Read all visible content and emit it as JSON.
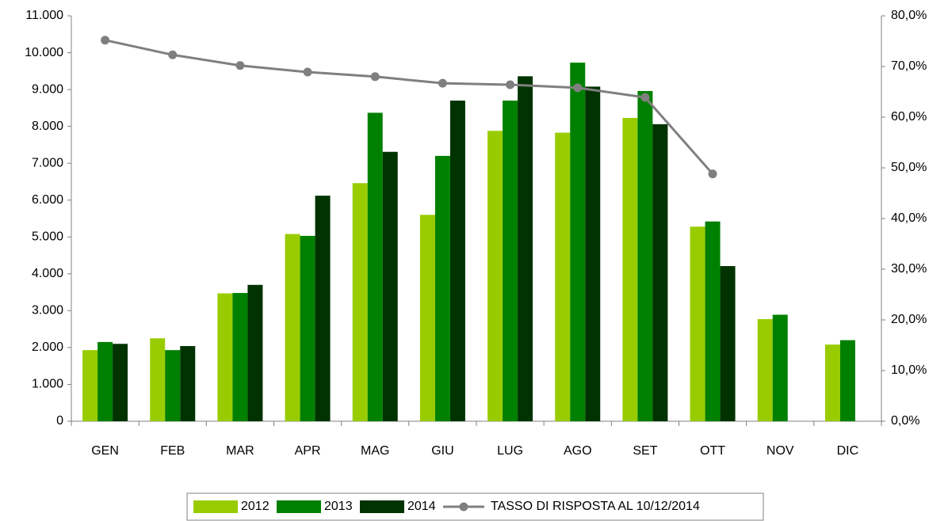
{
  "chart_data": {
    "type": "bar",
    "categories": [
      "GEN",
      "FEB",
      "MAR",
      "APR",
      "MAG",
      "GIU",
      "LUG",
      "AGO",
      "SET",
      "OTT",
      "NOV",
      "DIC"
    ],
    "series": [
      {
        "name": "2012",
        "color": "#99cc00",
        "values": [
          1930,
          2250,
          3470,
          5080,
          6460,
          5600,
          7880,
          7830,
          8230,
          5280,
          2770,
          2080
        ]
      },
      {
        "name": "2013",
        "color": "#008000",
        "values": [
          2150,
          1930,
          3480,
          5030,
          8370,
          7200,
          8700,
          9730,
          8960,
          5420,
          2890,
          2200
        ]
      },
      {
        "name": "2014",
        "color": "#003300",
        "values": [
          2100,
          2040,
          3700,
          6120,
          7310,
          8700,
          9360,
          9080,
          8060,
          4210,
          null,
          null
        ]
      },
      {
        "name": "TASSO DI RISPOSTA AL 10/12/2014",
        "color": "#7f7f7f",
        "type": "line",
        "axis": "y2",
        "values": [
          75.2,
          72.3,
          70.2,
          68.9,
          68.0,
          66.7,
          66.4,
          65.8,
          63.9,
          48.8,
          null,
          null
        ]
      }
    ],
    "ylim": [
      0,
      11000
    ],
    "yticks": [
      0,
      {
        "value": 1000,
        "label": "1.000"
      },
      {
        "value": 2000,
        "label": "2.000"
      },
      {
        "value": 3000,
        "label": "3.000"
      },
      {
        "value": 4000,
        "label": "4.000"
      },
      {
        "value": 5000,
        "label": "5.000"
      },
      {
        "value": 6000,
        "label": "6.000"
      },
      {
        "value": 7000,
        "label": "7.000"
      },
      {
        "value": 8000,
        "label": "8.000"
      },
      {
        "value": 9000,
        "label": "9.000"
      },
      {
        "value": 10000,
        "label": "10.000"
      },
      {
        "value": 11000,
        "label": "11.000"
      }
    ],
    "y2lim": [
      0,
      80
    ],
    "y2ticks": [
      {
        "value": 0,
        "label": "0,0%"
      },
      {
        "value": 10,
        "label": "10,0%"
      },
      {
        "value": 20,
        "label": "20,0%"
      },
      {
        "value": 30,
        "label": "30,0%"
      },
      {
        "value": 40,
        "label": "40,0%"
      },
      {
        "value": 50,
        "label": "50,0%"
      },
      {
        "value": 60,
        "label": "60,0%"
      },
      {
        "value": 70,
        "label": "70,0%"
      },
      {
        "value": 80,
        "label": "80,0%"
      }
    ],
    "grid": false,
    "legend": "bottom"
  }
}
